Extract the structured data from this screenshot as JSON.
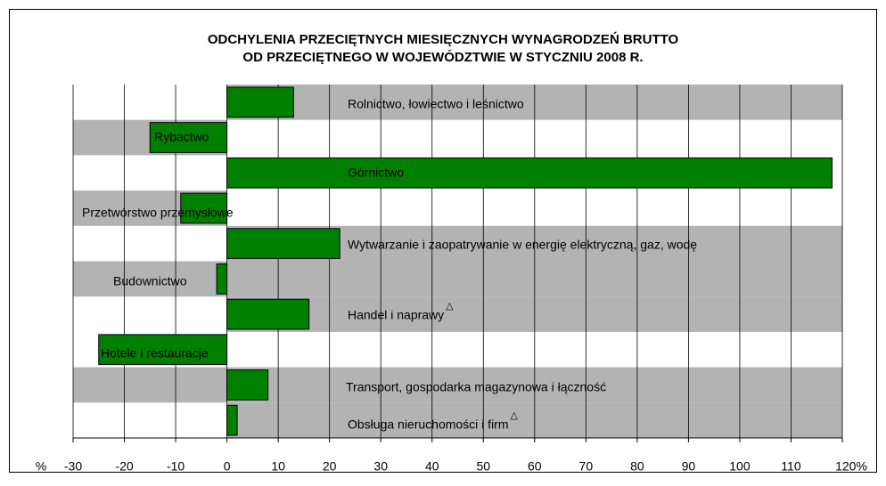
{
  "chart_data": {
    "type": "bar",
    "orientation": "horizontal",
    "title": [
      "ODCHYLENIA PRZECIĘTNYCH MIESIĘCZNYCH WYNAGRODZEŃ BRUTTO",
      "OD PRZECIĘTNEGO W WOJEWÓDZTWIE W STYCZNIU 2008 R."
    ],
    "categories": [
      "Rolnictwo, łowiectwo i leśnictwo",
      "Rybactwo",
      "Górnictwo",
      "Przetwórstwo przemysłowe",
      "Wytwarzanie i zaopatrywanie w  energię elektryczną, gaz, wodę",
      "Budownictwo",
      "Handel i naprawy",
      "Hotele i restauracje",
      "Transport, gospodarka magazynowa i łączność",
      "Obsługa nieruchomości i firm"
    ],
    "category_notes": [
      null,
      null,
      null,
      null,
      null,
      null,
      "△",
      null,
      null,
      "△"
    ],
    "values": [
      13,
      -15,
      118,
      -9,
      22,
      -2,
      16,
      -25,
      8,
      2
    ],
    "color": "#008000",
    "xlim": [
      -30,
      120
    ],
    "xticks": [
      -30,
      -20,
      -10,
      0,
      10,
      20,
      30,
      40,
      50,
      60,
      70,
      80,
      90,
      100,
      110,
      {
        "value": 120,
        "label": "120%"
      }
    ],
    "x_unit": "%",
    "grid": true
  }
}
